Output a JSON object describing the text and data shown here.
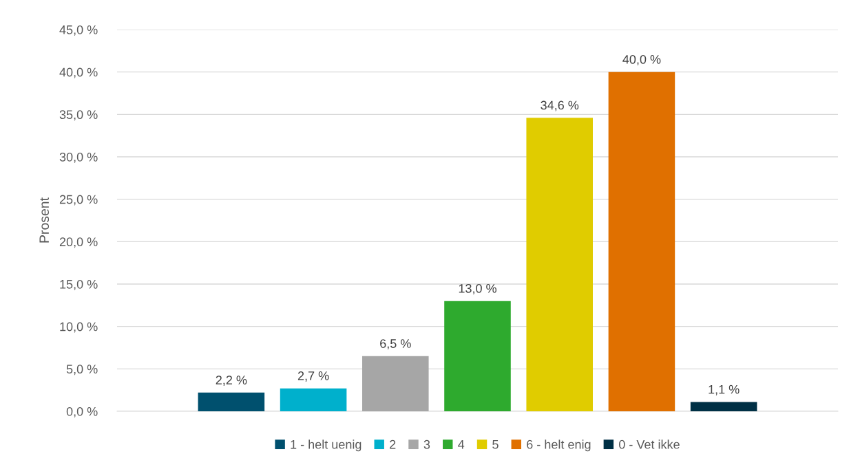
{
  "chart_data": {
    "type": "bar",
    "ylabel": "Prosent",
    "categories": [
      null
    ],
    "series": [
      {
        "name": "1 - helt uenig",
        "color": "#00506e",
        "values": [
          2.2
        ],
        "value_labels": [
          "2,2 %"
        ]
      },
      {
        "name": "2",
        "color": "#00b0cc",
        "values": [
          2.7
        ],
        "value_labels": [
          "2,7 %"
        ]
      },
      {
        "name": "3",
        "color": "#a6a6a6",
        "values": [
          6.5
        ],
        "value_labels": [
          "6,5 %"
        ]
      },
      {
        "name": "4",
        "color": "#2eaa2e",
        "values": [
          13.0
        ],
        "value_labels": [
          "13,0 %"
        ]
      },
      {
        "name": "5",
        "color": "#e0cc00",
        "values": [
          34.6
        ],
        "value_labels": [
          "34,6 %"
        ]
      },
      {
        "name": "6 - helt enig",
        "color": "#e07000",
        "values": [
          40.0
        ],
        "value_labels": [
          "40,0 %"
        ]
      },
      {
        "name": "0 - Vet ikke",
        "color": "#003045",
        "values": [
          1.1
        ],
        "value_labels": [
          "1,1 %"
        ]
      }
    ],
    "ylim": [
      0,
      45
    ],
    "yticks": [
      {
        "value": 0,
        "label": "0,0 %"
      },
      {
        "value": 5,
        "label": "5,0 %"
      },
      {
        "value": 10,
        "label": "10,0 %"
      },
      {
        "value": 15,
        "label": "15,0 %"
      },
      {
        "value": 20,
        "label": "20,0 %"
      },
      {
        "value": 25,
        "label": "25,0 %"
      },
      {
        "value": 30,
        "label": "30,0 %"
      },
      {
        "value": 35,
        "label": "35,0 %"
      },
      {
        "value": 40,
        "label": "40,0 %"
      },
      {
        "value": 45,
        "label": "45,0 %"
      }
    ],
    "grid": "y",
    "legend": "bottom"
  }
}
